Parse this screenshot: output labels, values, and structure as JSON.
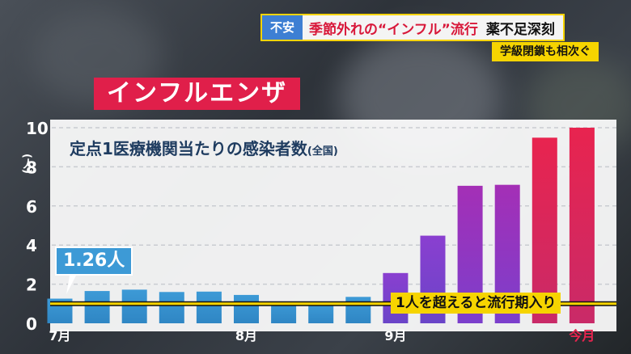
{
  "headline": {
    "tag": "不安",
    "title": "季節外れの“インフル”流行",
    "title2": "薬不足深刻",
    "subtitle": "学級閉鎖も相次ぐ"
  },
  "topic_label": "インフルエンザ",
  "annotation": "1.26人",
  "threshold_label": "1人を超えると流行期入り",
  "colors": {
    "headline_red": "#d8183a",
    "tag_blue": "#3d7fd3",
    "accent_yellow": "#f6d400",
    "topic_red": "#e01f4a",
    "bar_blue": "#3d9ad6",
    "bar_purple": "#8a3fd0",
    "bar_red": "#e8244f"
  },
  "chart_data": {
    "type": "bar",
    "title": "定点1医療機関当たりの感染者数",
    "subtitle": "(全国)",
    "ylabel": "(人)",
    "ylim": [
      0,
      10
    ],
    "yticks": [
      0,
      2,
      4,
      6,
      8,
      10
    ],
    "values": [
      1.26,
      1.65,
      1.72,
      1.6,
      1.62,
      1.45,
      1.07,
      0.92,
      1.35,
      2.57,
      4.48,
      7.03,
      7.08,
      9.49,
      10.0
    ],
    "x_labels": [
      {
        "index": 0,
        "text": "7月"
      },
      {
        "index": 5,
        "text": "8月"
      },
      {
        "index": 9,
        "text": "9月"
      },
      {
        "index": 14,
        "text": "今月"
      }
    ],
    "threshold": 1,
    "grid": true
  }
}
